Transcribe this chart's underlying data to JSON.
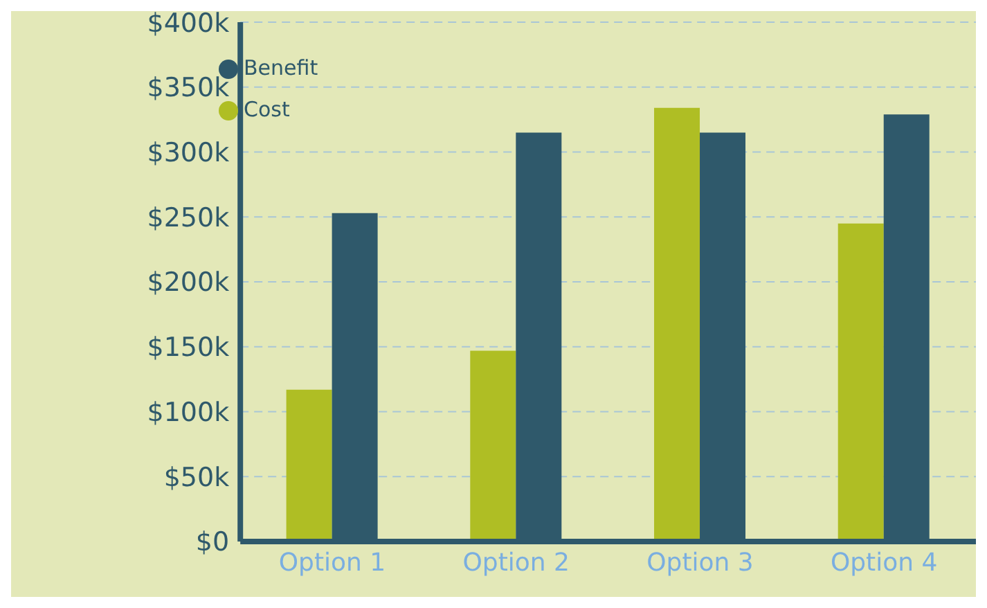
{
  "chart_data": {
    "type": "bar",
    "categories": [
      "Option 1",
      "Option 2",
      "Option 3",
      "Option 4"
    ],
    "series": [
      {
        "name": "Cost",
        "color": "#afbe24",
        "values": [
          117000,
          147000,
          334000,
          245000
        ]
      },
      {
        "name": "Benefit",
        "color": "#2f596b",
        "values": [
          253000,
          315000,
          315000,
          329000
        ]
      }
    ],
    "ylim": [
      0,
      400000
    ],
    "yticks": [
      {
        "value": 0,
        "label": "$0"
      },
      {
        "value": 50000,
        "label": "$50k"
      },
      {
        "value": 100000,
        "label": "$100k"
      },
      {
        "value": 150000,
        "label": "$150k"
      },
      {
        "value": 200000,
        "label": "$200k"
      },
      {
        "value": 250000,
        "label": "$250k"
      },
      {
        "value": 300000,
        "label": "$300k"
      },
      {
        "value": 350000,
        "label": "$350k"
      },
      {
        "value": 400000,
        "label": "$400k"
      }
    ],
    "grid": "y",
    "legend": "top left"
  }
}
